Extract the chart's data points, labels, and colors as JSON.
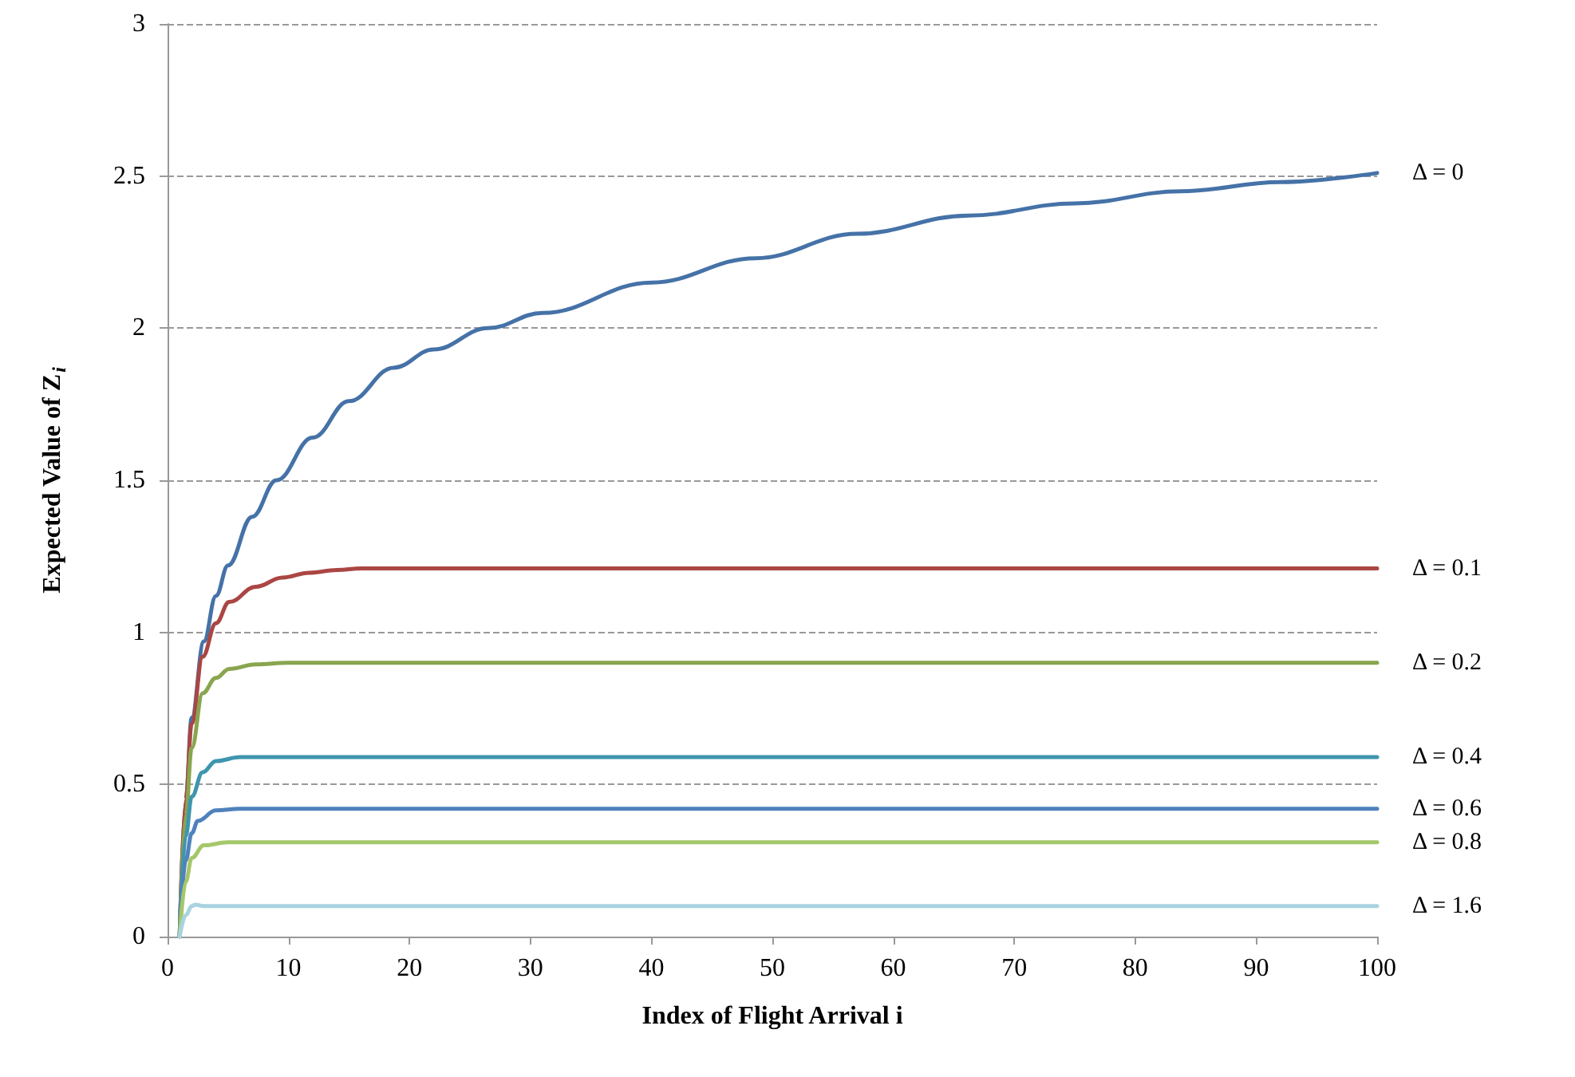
{
  "chart_data": {
    "type": "line",
    "xlabel": "Index of Flight Arrival i",
    "ylabel": "Expected Value of Z$_{i}$",
    "xlim": [
      0,
      100
    ],
    "xticks": [
      0,
      10,
      20,
      30,
      40,
      50,
      60,
      70,
      80,
      90,
      100
    ],
    "ylim": [
      0,
      3
    ],
    "yticks": [
      0,
      0.5,
      1,
      1.5,
      2,
      2.5,
      3
    ],
    "grid": "y",
    "legend": false,
    "marker": "none",
    "line_style": "solid",
    "series": [
      {
        "name": "Δ = 0",
        "color": "#4572a7",
        "x": [
          1,
          1.5,
          2,
          3,
          4,
          5,
          7,
          9,
          12,
          15,
          18.7,
          22,
          26.5,
          31,
          40,
          48.6,
          57,
          66.2,
          75,
          83.8,
          92,
          100
        ],
        "values": [
          0,
          0.45,
          0.72,
          0.97,
          1.12,
          1.22,
          1.38,
          1.5,
          1.64,
          1.76,
          1.87,
          1.93,
          2.0,
          2.05,
          2.15,
          2.23,
          2.31,
          2.37,
          2.41,
          2.45,
          2.48,
          2.51
        ]
      },
      {
        "name": "Δ = 0.1",
        "color": "#aa4643",
        "x": [
          1,
          1.5,
          2,
          2.9,
          4,
          5.1,
          7.3,
          9.5,
          11.7,
          14,
          16,
          20,
          100
        ],
        "values": [
          0,
          0.45,
          0.7,
          0.92,
          1.03,
          1.1,
          1.15,
          1.18,
          1.196,
          1.205,
          1.21,
          1.21,
          1.21
        ]
      },
      {
        "name": "Δ = 0.2",
        "color": "#89a54e",
        "x": [
          1,
          1.5,
          2,
          2.9,
          4,
          5.1,
          7.3,
          10,
          100
        ],
        "values": [
          0,
          0.4,
          0.62,
          0.8,
          0.85,
          0.88,
          0.895,
          0.9,
          0.9
        ]
      },
      {
        "name": "Δ = 0.4",
        "color": "#3d96ae",
        "x": [
          1,
          1.5,
          2,
          2.9,
          4,
          6,
          100
        ],
        "values": [
          0,
          0.33,
          0.46,
          0.54,
          0.577,
          0.59,
          0.59
        ]
      },
      {
        "name": "Δ = 0.6",
        "color": "#4f81bd",
        "x": [
          1,
          1.5,
          2,
          2.5,
          4,
          6,
          100
        ],
        "values": [
          0,
          0.25,
          0.34,
          0.38,
          0.415,
          0.42,
          0.42
        ]
      },
      {
        "name": "Δ = 0.8",
        "color": "#a5c76a",
        "x": [
          1,
          1.5,
          2,
          3,
          5,
          100
        ],
        "values": [
          0,
          0.18,
          0.258,
          0.3,
          0.31,
          0.31
        ]
      },
      {
        "name": "Δ = 1.6",
        "color": "#a9d3df",
        "x": [
          1,
          1.5,
          2,
          2.3,
          3,
          100
        ],
        "values": [
          0,
          0.07,
          0.1,
          0.105,
          0.1,
          0.1
        ]
      }
    ]
  }
}
